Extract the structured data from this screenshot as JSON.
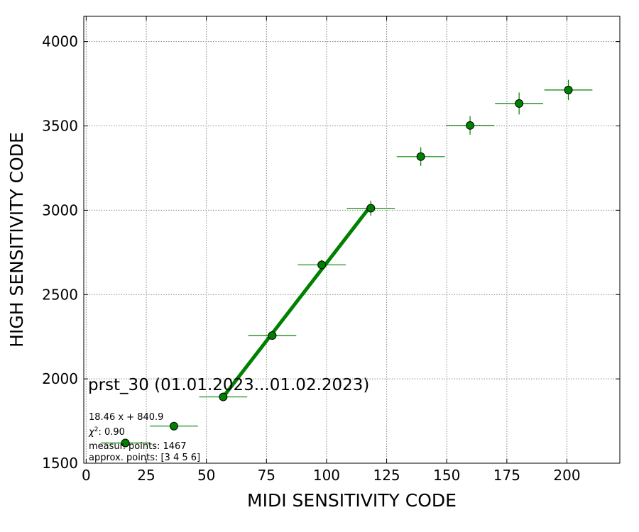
{
  "chart_data": {
    "type": "scatter",
    "xlabel": "MIDI SENSITIVITY CODE",
    "ylabel": "HIGH SENSITIVITY CODE",
    "xlim": [
      -1,
      222
    ],
    "ylim": [
      1500,
      4150
    ],
    "xticks": [
      0,
      25,
      50,
      75,
      100,
      125,
      150,
      175,
      200
    ],
    "yticks": [
      1500,
      2000,
      2500,
      3000,
      3500,
      4000
    ],
    "grid": true,
    "colors": {
      "marker_fill": "#008000",
      "marker_edge": "#000000",
      "errorbar": "#008000",
      "fit_line": "#008000",
      "grid": "#888888"
    },
    "points": [
      {
        "x": 16.3,
        "y": 1620,
        "xerr": 10,
        "yerr": 20
      },
      {
        "x": 36.5,
        "y": 1720,
        "xerr": 10,
        "yerr": 20
      },
      {
        "x": 57.0,
        "y": 1893,
        "xerr": 10,
        "yerr": 25
      },
      {
        "x": 77.4,
        "y": 2257,
        "xerr": 10,
        "yerr": 25
      },
      {
        "x": 98.0,
        "y": 2676,
        "xerr": 10,
        "yerr": 30
      },
      {
        "x": 118.4,
        "y": 3012,
        "xerr": 10,
        "yerr": 45
      },
      {
        "x": 139.2,
        "y": 3318,
        "xerr": 10,
        "yerr": 55
      },
      {
        "x": 159.7,
        "y": 3503,
        "xerr": 10,
        "yerr": 55
      },
      {
        "x": 180.1,
        "y": 3633,
        "xerr": 10,
        "yerr": 65
      },
      {
        "x": 200.6,
        "y": 3713,
        "xerr": 10,
        "yerr": 60
      }
    ],
    "fit": {
      "slope": 18.46,
      "intercept": 840.9,
      "x_range": [
        57.0,
        118.4
      ]
    },
    "annotations": {
      "title": "prst_30 (01.01.2023...01.02.2023)",
      "equation": "18.46 x + 840.9",
      "chi2_value": ": 0.90",
      "measur_points": "measur. points: 1467",
      "approx_points": "approx. points: [3 4 5 6]"
    }
  }
}
